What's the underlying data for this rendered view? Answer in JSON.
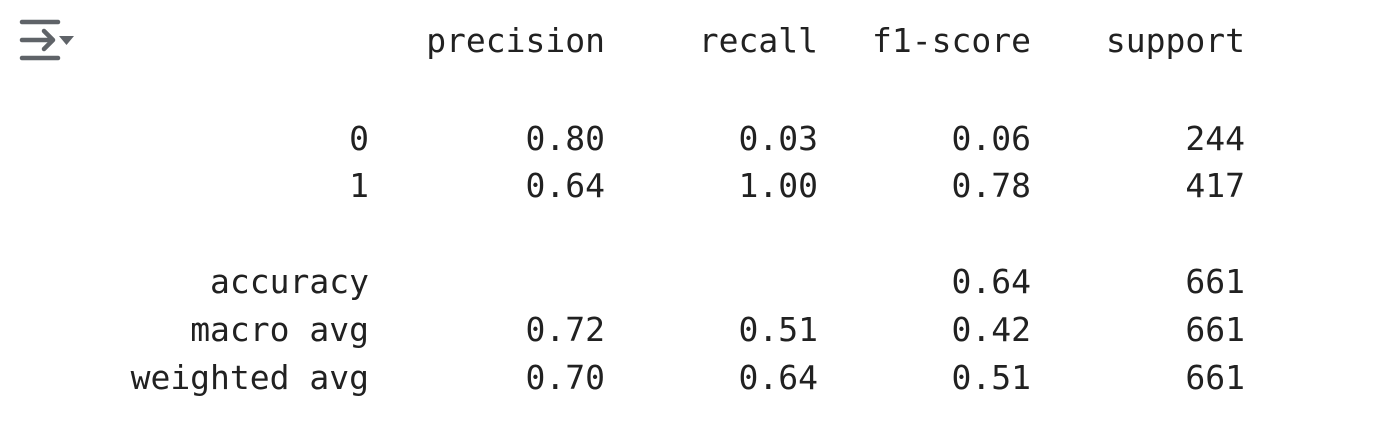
{
  "output_toggle": {
    "icon": "output-collapse-icon",
    "color": "#5f6368"
  },
  "report": {
    "headers": {
      "precision": "precision",
      "recall": "recall",
      "f1": "f1-score",
      "support": "support"
    },
    "rows": [
      {
        "label": "0",
        "precision": "0.80",
        "recall": "0.03",
        "f1": "0.06",
        "support": "244"
      },
      {
        "label": "1",
        "precision": "0.64",
        "recall": "1.00",
        "f1": "0.78",
        "support": "417"
      }
    ],
    "summary": {
      "accuracy": {
        "label": "accuracy",
        "f1": "0.64",
        "support": "661"
      },
      "macro_avg": {
        "label": "macro avg",
        "precision": "0.72",
        "recall": "0.51",
        "f1": "0.42",
        "support": "661"
      },
      "weighted_avg": {
        "label": "weighted avg",
        "precision": "0.70",
        "recall": "0.64",
        "f1": "0.51",
        "support": "661"
      }
    }
  }
}
